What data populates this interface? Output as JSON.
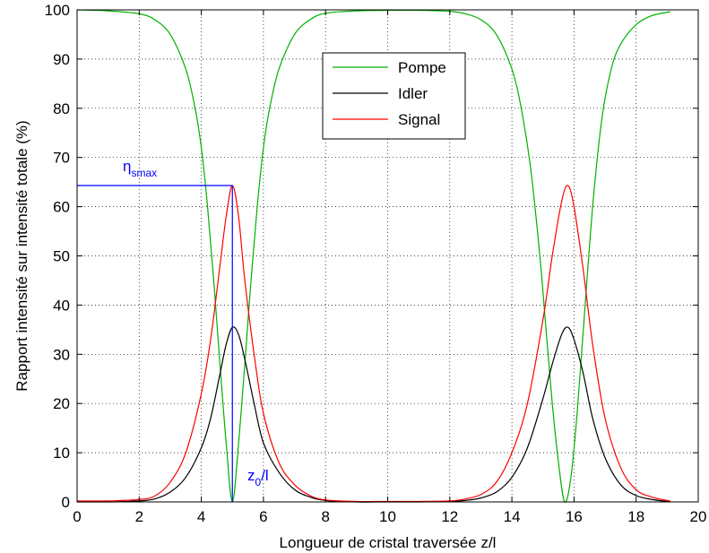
{
  "chart_data": {
    "type": "line",
    "title": "",
    "xlabel": "Longueur de cristal traversée z/l",
    "ylabel": "Rapport intensité sur intensité totale (%)",
    "xlim": [
      0,
      20
    ],
    "ylim": [
      0,
      100
    ],
    "xticks": [
      "0",
      "2",
      "4",
      "6",
      "8",
      "10",
      "12",
      "14",
      "16",
      "18",
      "20"
    ],
    "yticks": [
      "0",
      "10",
      "20",
      "30",
      "40",
      "50",
      "60",
      "70",
      "80",
      "90",
      "100"
    ],
    "grid": true,
    "legend_position": "top-center",
    "series": [
      {
        "name": "Pompe",
        "color": "#00b000",
        "x": [
          0,
          1,
          2,
          2.5,
          3,
          3.5,
          3.8,
          4,
          4.2,
          4.4,
          4.6,
          4.8,
          5.0,
          5.2,
          5.4,
          5.6,
          5.8,
          6.0,
          6.2,
          6.5,
          7,
          7.5,
          8,
          9,
          10,
          11,
          12,
          12.5,
          13,
          13.5,
          14,
          14.3,
          14.6,
          14.9,
          15.1,
          15.3,
          15.5,
          15.7,
          15.9,
          16.1,
          16.3,
          16.6,
          16.9,
          17.2,
          17.5,
          18,
          18.5,
          19,
          19.1
        ],
        "values": [
          100,
          99.8,
          99.2,
          98,
          95,
          88,
          80,
          72,
          60,
          45,
          28,
          12,
          0,
          12,
          28,
          45,
          60,
          72,
          80,
          88,
          95,
          98,
          99.3,
          99.8,
          99.9,
          99.9,
          99.7,
          99.2,
          98,
          95,
          88,
          80,
          68,
          50,
          35,
          20,
          8,
          0,
          5,
          18,
          35,
          60,
          78,
          88,
          93,
          97,
          98.8,
          99.5,
          99.6
        ]
      },
      {
        "name": "Idler",
        "color": "#000000",
        "x": [
          0,
          1,
          2,
          2.5,
          3,
          3.5,
          4,
          4.3,
          4.6,
          4.8,
          5.0,
          5.2,
          5.4,
          5.7,
          6,
          6.5,
          7,
          7.5,
          8,
          9,
          10,
          11,
          12,
          12.5,
          13,
          13.5,
          14,
          14.5,
          15,
          15.3,
          15.6,
          15.8,
          16.0,
          16.3,
          16.6,
          17,
          17.5,
          18,
          18.5,
          19,
          19.1
        ],
        "values": [
          0,
          0,
          0.2,
          0.6,
          2,
          5,
          11,
          17,
          26,
          32,
          35.5,
          34,
          29,
          20,
          12,
          6,
          2.5,
          1,
          0.3,
          0,
          0,
          0,
          0.1,
          0.3,
          0.8,
          2,
          5,
          11,
          21,
          28,
          34,
          35.5,
          33,
          26,
          17,
          9,
          3.5,
          1.3,
          0.5,
          0.1,
          0
        ]
      },
      {
        "name": "Signal",
        "color": "#ff0000",
        "x": [
          0,
          1,
          2,
          2.5,
          3,
          3.5,
          4,
          4.3,
          4.6,
          4.8,
          5.0,
          5.2,
          5.4,
          5.7,
          6,
          6.5,
          7,
          7.5,
          8,
          9,
          10,
          11,
          12,
          12.5,
          13,
          13.5,
          14,
          14.5,
          15,
          15.3,
          15.6,
          15.8,
          16.0,
          16.3,
          16.6,
          17,
          17.5,
          18,
          18.5,
          19,
          19.1
        ],
        "values": [
          0.2,
          0.2,
          0.5,
          1.2,
          4,
          10,
          22,
          33,
          48,
          58,
          64.3,
          58,
          45,
          30,
          18,
          8,
          3.5,
          1.3,
          0.4,
          0.1,
          0.1,
          0.1,
          0.2,
          0.6,
          1.5,
          4,
          10,
          20,
          37,
          50,
          61,
          64.3,
          60,
          47,
          32,
          17,
          7,
          2.5,
          1,
          0.3,
          0.2
        ]
      }
    ],
    "annotations": {
      "eta_label": {
        "base": "η",
        "subscript": "smax"
      },
      "z0_label": {
        "base": "z",
        "subscript": "0",
        "suffix": "/l"
      },
      "peak_x": 5.0,
      "peak_y": 64.3,
      "color": "#0000ff"
    }
  }
}
